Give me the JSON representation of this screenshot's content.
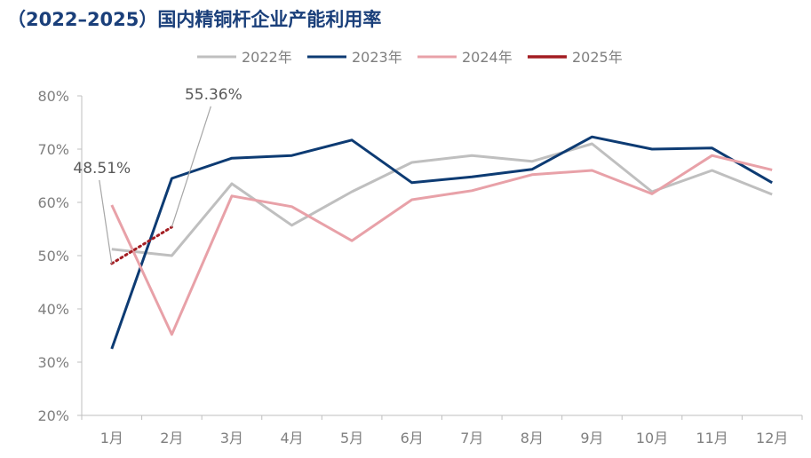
{
  "title": "（2022–2025）国内精铜杆企业产能利用率",
  "chart_data": {
    "type": "line",
    "title": "（2022–2025）国内精铜杆企业产能利用率",
    "categories": [
      "1月",
      "2月",
      "3月",
      "4月",
      "5月",
      "6月",
      "7月",
      "8月",
      "9月",
      "10月",
      "11月",
      "12月"
    ],
    "y_ticks": [
      "20%",
      "30%",
      "40%",
      "50%",
      "60%",
      "70%",
      "80%"
    ],
    "ylim": [
      20,
      80
    ],
    "grid": false,
    "legend_position": "top-center",
    "series": [
      {
        "name": "2022年",
        "color": "#bfbfbf",
        "dash": "solid",
        "values": [
          51.2,
          50.0,
          63.5,
          55.7,
          62.0,
          67.5,
          68.8,
          67.7,
          71.0,
          62.0,
          66.0,
          61.5
        ]
      },
      {
        "name": "2023年",
        "color": "#0d3b73",
        "dash": "solid",
        "values": [
          32.5,
          64.5,
          68.3,
          68.8,
          71.7,
          63.7,
          64.8,
          66.2,
          72.3,
          70.0,
          70.2,
          63.7
        ]
      },
      {
        "name": "2024年",
        "color": "#e8a1a8",
        "dash": "solid",
        "values": [
          59.5,
          35.2,
          61.2,
          59.2,
          52.8,
          60.5,
          62.2,
          65.2,
          66.0,
          61.6,
          68.8,
          66.1
        ]
      },
      {
        "name": "2025年",
        "color": "#a31d22",
        "dash": "dotted",
        "values": [
          48.51,
          55.36,
          null,
          null,
          null,
          null,
          null,
          null,
          null,
          null,
          null,
          null
        ]
      }
    ],
    "annotations": [
      {
        "text": "48.51%",
        "series": "2025年",
        "index": 0
      },
      {
        "text": "55.36%",
        "series": "2025年",
        "index": 1
      }
    ]
  }
}
